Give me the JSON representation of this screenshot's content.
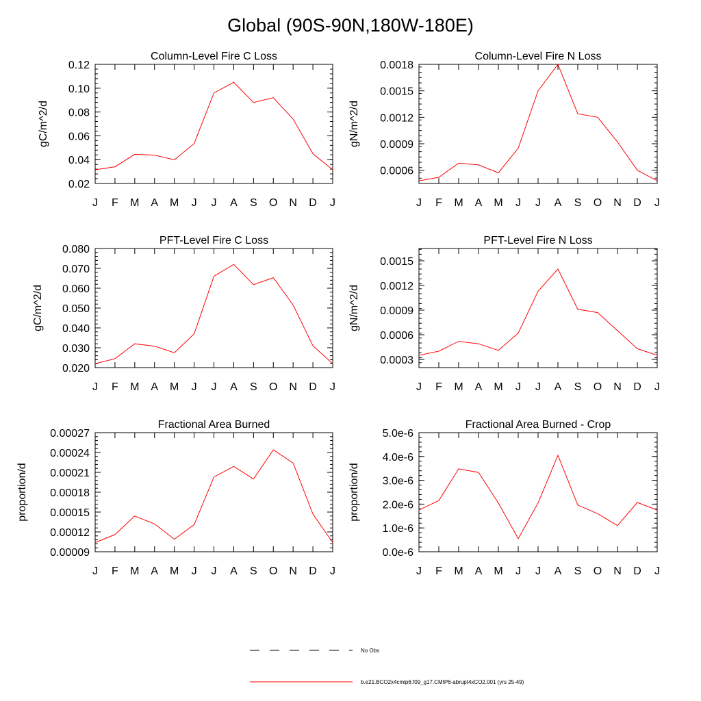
{
  "page": {
    "title": "Global (90S-90N,180W-180E)"
  },
  "legend": {
    "entries": [
      {
        "label": "No Obs",
        "style": "dashed",
        "color": "#000000"
      },
      {
        "label": "b.e21.BCO2x4cmip6.f09_g17.CMIP6-abrupt4xCO2.001 (yrs 25-49)",
        "style": "solid",
        "color": "#ff0000"
      }
    ]
  },
  "chart_data": [
    {
      "type": "line",
      "title": "Column-Level Fire C Loss",
      "ylabel": "gC/m^2/d",
      "xlabel": "",
      "categories": [
        "J",
        "F",
        "M",
        "A",
        "M",
        "J",
        "J",
        "A",
        "S",
        "O",
        "N",
        "D",
        "J"
      ],
      "ylim": [
        0.02,
        0.12
      ],
      "yticks": [
        "0.02",
        "0.04",
        "0.06",
        "0.08",
        "0.10",
        "0.12"
      ],
      "series": [
        {
          "values": [
            0.0315,
            0.034,
            0.0445,
            0.0438,
            0.0398,
            0.0535,
            0.096,
            0.105,
            0.088,
            0.092,
            0.074,
            0.045,
            0.0315
          ]
        }
      ]
    },
    {
      "type": "line",
      "title": "Column-Level Fire N Loss",
      "ylabel": "gN/m^2/d",
      "xlabel": "",
      "categories": [
        "J",
        "F",
        "M",
        "A",
        "M",
        "J",
        "J",
        "A",
        "S",
        "O",
        "N",
        "D",
        "J"
      ],
      "ylim": [
        0.00045,
        0.0018
      ],
      "yticks": [
        "0.0006",
        "0.0009",
        "0.0012",
        "0.0015",
        "0.0018"
      ],
      "series": [
        {
          "values": [
            0.00048,
            0.00052,
            0.00068,
            0.00066,
            0.00057,
            0.00085,
            0.0015,
            0.0018,
            0.00124,
            0.0012,
            0.00092,
            0.0006,
            0.00048
          ]
        }
      ]
    },
    {
      "type": "line",
      "title": "PFT-Level Fire C Loss",
      "ylabel": "gC/m^2/d",
      "xlabel": "",
      "categories": [
        "J",
        "F",
        "M",
        "A",
        "M",
        "J",
        "J",
        "A",
        "S",
        "O",
        "N",
        "D",
        "J"
      ],
      "ylim": [
        0.02,
        0.08
      ],
      "yticks": [
        "0.020",
        "0.030",
        "0.040",
        "0.050",
        "0.060",
        "0.070",
        "0.080"
      ],
      "series": [
        {
          "values": [
            0.022,
            0.0245,
            0.032,
            0.0308,
            0.0275,
            0.037,
            0.066,
            0.072,
            0.0618,
            0.0653,
            0.0515,
            0.031,
            0.022
          ]
        }
      ]
    },
    {
      "type": "line",
      "title": "PFT-Level Fire N Loss",
      "ylabel": "gN/m^2/d",
      "xlabel": "",
      "categories": [
        "J",
        "F",
        "M",
        "A",
        "M",
        "J",
        "J",
        "A",
        "S",
        "O",
        "N",
        "D",
        "J"
      ],
      "ylim": [
        0.0002,
        0.00165
      ],
      "yticks": [
        "0.0003",
        "0.0006",
        "0.0009",
        "0.0012",
        "0.0015"
      ],
      "series": [
        {
          "values": [
            0.00035,
            0.0004,
            0.00052,
            0.00049,
            0.00041,
            0.00062,
            0.00113,
            0.0014,
            0.00091,
            0.00087,
            0.00065,
            0.00043,
            0.00035
          ]
        }
      ]
    },
    {
      "type": "line",
      "title": "Fractional Area Burned",
      "ylabel": "proportion/d",
      "xlabel": "",
      "categories": [
        "J",
        "F",
        "M",
        "A",
        "M",
        "J",
        "J",
        "A",
        "S",
        "O",
        "N",
        "D",
        "J"
      ],
      "ylim": [
        9e-05,
        0.00027
      ],
      "yticks": [
        "0.00009",
        "0.00012",
        "0.00015",
        "0.00018",
        "0.00021",
        "0.00024",
        "0.00027"
      ],
      "series": [
        {
          "values": [
            0.000104,
            0.000116,
            0.000144,
            0.000132,
            0.000109,
            0.000131,
            0.000203,
            0.000219,
            0.0002,
            0.000244,
            0.000224,
            0.000147,
            0.000104
          ]
        }
      ]
    },
    {
      "type": "line",
      "title": "Fractional Area Burned - Crop",
      "ylabel": "proportion/d",
      "xlabel": "",
      "categories": [
        "J",
        "F",
        "M",
        "A",
        "M",
        "J",
        "J",
        "A",
        "S",
        "O",
        "N",
        "D",
        "J"
      ],
      "ylim": [
        0,
        5e-06
      ],
      "yticks": [
        "0.0e-6",
        "1.0e-6",
        "2.0e-6",
        "3.0e-6",
        "4.0e-6",
        "5.0e-6"
      ],
      "series": [
        {
          "values": [
            1.75e-06,
            2.15e-06,
            3.48e-06,
            3.33e-06,
            2.05e-06,
            5.5e-07,
            2.05e-06,
            4.05e-06,
            1.96e-06,
            1.6e-06,
            1.1e-06,
            2.07e-06,
            1.75e-06
          ]
        }
      ]
    }
  ]
}
